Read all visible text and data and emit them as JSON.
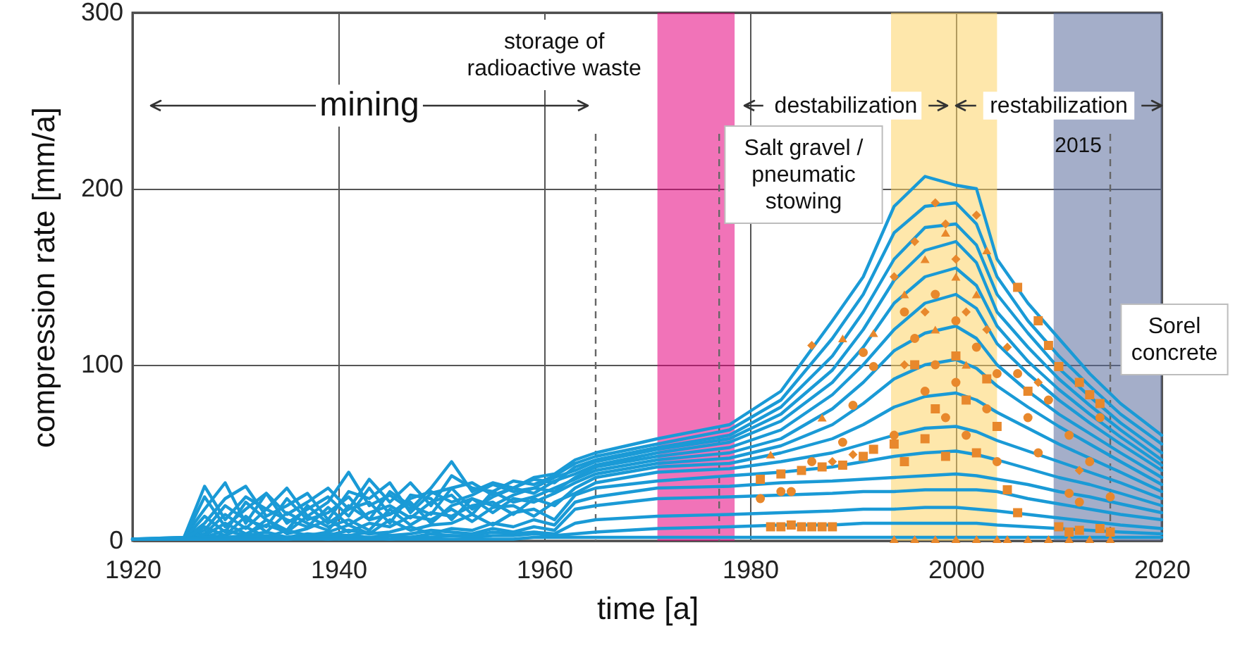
{
  "chart_data": {
    "type": "line",
    "xlabel": "time [a]",
    "ylabel": "compression rate [mm/a]",
    "xlim": [
      1920,
      2020
    ],
    "ylim": [
      0,
      300
    ],
    "xticks": [
      1920,
      1940,
      1960,
      1980,
      2000,
      2020
    ],
    "yticks": [
      0,
      100,
      200,
      300
    ],
    "grid": true,
    "line_style": "solid",
    "x": [
      1920,
      1925,
      1927,
      1929,
      1931,
      1933,
      1935,
      1937,
      1939,
      1941,
      1943,
      1945,
      1947,
      1949,
      1951,
      1953,
      1955,
      1957,
      1959,
      1961,
      1963,
      1965,
      1971,
      1978,
      1983,
      1988,
      1991,
      1994,
      1997,
      2000,
      2002,
      2004,
      2007,
      2010,
      2013,
      2016,
      2020
    ],
    "series": [
      {
        "color": "#1a9ad6",
        "values": [
          1,
          2,
          31,
          12,
          25,
          18,
          30,
          14,
          22,
          39,
          20,
          26,
          18,
          30,
          45,
          28,
          33,
          30,
          36,
          38,
          46,
          50,
          58,
          66,
          85,
          125,
          150,
          190,
          207,
          202,
          200,
          160,
          135,
          115,
          95,
          78,
          60
        ]
      },
      {
        "color": "#1a9ad6",
        "values": [
          1,
          2,
          18,
          33,
          10,
          27,
          15,
          22,
          30,
          18,
          35,
          22,
          33,
          20,
          37,
          30,
          28,
          34,
          32,
          37,
          44,
          48,
          55,
          63,
          80,
          115,
          140,
          175,
          190,
          192,
          180,
          150,
          125,
          105,
          88,
          72,
          55
        ]
      },
      {
        "color": "#1a9ad6",
        "values": [
          1,
          1,
          10,
          24,
          31,
          14,
          20,
          27,
          12,
          28,
          24,
          33,
          16,
          27,
          30,
          33,
          26,
          30,
          35,
          33,
          42,
          46,
          53,
          60,
          76,
          105,
          130,
          160,
          178,
          180,
          168,
          140,
          118,
          98,
          82,
          67,
          50
        ]
      },
      {
        "color": "#1a9ad6",
        "values": [
          1,
          1,
          25,
          8,
          18,
          27,
          10,
          18,
          25,
          14,
          30,
          15,
          24,
          28,
          22,
          26,
          32,
          28,
          30,
          36,
          40,
          45,
          52,
          58,
          72,
          97,
          120,
          148,
          165,
          170,
          158,
          130,
          110,
          92,
          77,
          63,
          46
        ]
      },
      {
        "color": "#1a9ad6",
        "values": [
          1,
          1,
          6,
          20,
          12,
          8,
          24,
          12,
          16,
          25,
          12,
          28,
          20,
          15,
          30,
          18,
          25,
          30,
          27,
          34,
          38,
          43,
          50,
          56,
          68,
          90,
          110,
          135,
          150,
          155,
          145,
          122,
          102,
          86,
          72,
          59,
          43
        ]
      },
      {
        "color": "#1a9ad6",
        "values": [
          1,
          1,
          14,
          5,
          22,
          12,
          6,
          20,
          10,
          18,
          22,
          10,
          26,
          24,
          12,
          24,
          20,
          26,
          30,
          28,
          36,
          42,
          48,
          53,
          63,
          83,
          100,
          120,
          135,
          140,
          132,
          112,
          95,
          80,
          67,
          55,
          40
        ]
      },
      {
        "color": "#1a9ad6",
        "values": [
          1,
          1,
          4,
          15,
          7,
          18,
          12,
          8,
          19,
          9,
          16,
          20,
          13,
          22,
          26,
          15,
          28,
          22,
          25,
          30,
          35,
          40,
          46,
          50,
          58,
          75,
          90,
          108,
          118,
          122,
          115,
          100,
          85,
          72,
          61,
          50,
          36
        ]
      },
      {
        "color": "#1a9ad6",
        "values": [
          1,
          1,
          8,
          3,
          14,
          5,
          16,
          10,
          6,
          20,
          12,
          15,
          22,
          10,
          20,
          24,
          16,
          24,
          22,
          27,
          33,
          38,
          44,
          47,
          54,
          66,
          78,
          92,
          100,
          103,
          98,
          88,
          76,
          65,
          55,
          45,
          32
        ]
      },
      {
        "color": "#1a9ad6",
        "values": [
          1,
          1,
          3,
          10,
          4,
          9,
          5,
          14,
          8,
          12,
          6,
          18,
          9,
          16,
          14,
          20,
          22,
          15,
          24,
          20,
          30,
          36,
          42,
          44,
          50,
          58,
          66,
          76,
          82,
          84,
          80,
          73,
          64,
          55,
          47,
          39,
          28
        ]
      },
      {
        "color": "#1a9ad6",
        "values": [
          1,
          1,
          2,
          6,
          3,
          12,
          4,
          7,
          12,
          5,
          10,
          8,
          14,
          12,
          18,
          11,
          19,
          20,
          14,
          22,
          27,
          33,
          39,
          41,
          45,
          50,
          55,
          60,
          64,
          65,
          62,
          57,
          51,
          45,
          39,
          33,
          24
        ]
      },
      {
        "color": "#1a9ad6",
        "values": [
          1,
          1,
          2,
          3,
          8,
          2,
          6,
          3,
          5,
          9,
          4,
          12,
          6,
          9,
          10,
          15,
          9,
          16,
          18,
          12,
          26,
          30,
          34,
          37,
          39,
          42,
          45,
          48,
          50,
          51,
          49,
          46,
          41,
          36,
          32,
          27,
          20
        ]
      },
      {
        "color": "#1a9ad6",
        "values": [
          1,
          1,
          2,
          2,
          3,
          5,
          2,
          4,
          3,
          6,
          4,
          5,
          8,
          4,
          7,
          6,
          10,
          8,
          12,
          9,
          22,
          25,
          30,
          31,
          33,
          34,
          35,
          36,
          37,
          38,
          37,
          35,
          32,
          28,
          25,
          21,
          16
        ]
      },
      {
        "color": "#1a9ad6",
        "values": [
          1,
          1,
          1,
          2,
          2,
          3,
          2,
          3,
          4,
          3,
          5,
          3,
          4,
          6,
          5,
          4,
          7,
          5,
          8,
          6,
          18,
          20,
          24,
          25,
          26,
          27,
          28,
          28,
          29,
          29,
          29,
          28,
          24,
          21,
          18,
          15,
          12
        ]
      },
      {
        "color": "#1a9ad6",
        "values": [
          1,
          1,
          1,
          1,
          2,
          2,
          1,
          2,
          2,
          3,
          2,
          3,
          2,
          4,
          3,
          3,
          5,
          4,
          5,
          4,
          10,
          12,
          14,
          15,
          16,
          17,
          18,
          18,
          19,
          19,
          18,
          17,
          15,
          13,
          11,
          9,
          7
        ]
      },
      {
        "color": "#1a9ad6",
        "values": [
          1,
          1,
          1,
          1,
          1,
          1,
          1,
          2,
          1,
          2,
          2,
          1,
          2,
          2,
          3,
          2,
          3,
          3,
          4,
          3,
          4,
          5,
          7,
          8,
          9,
          9,
          10,
          10,
          10,
          10,
          10,
          9,
          8,
          7,
          6,
          5,
          4
        ]
      },
      {
        "color": "#1a9ad6",
        "values": [
          1,
          1,
          1,
          1,
          1,
          1,
          1,
          1,
          1,
          1,
          1,
          1,
          1,
          1,
          1,
          1,
          1,
          1,
          2,
          2,
          2,
          2,
          2,
          2,
          2,
          2,
          2,
          2,
          2,
          2,
          2,
          2,
          2,
          2,
          2,
          2,
          2
        ]
      },
      {
        "type": "scatter",
        "marker": "circle",
        "color": "#e8882c",
        "x": [
          1981,
          1983,
          1984,
          1986,
          1989,
          1990,
          1991,
          1992,
          1994,
          1995,
          1996,
          1997,
          1998,
          1998,
          1999,
          2000,
          2000,
          2001,
          2002,
          2003,
          2004,
          2004,
          2006,
          2007,
          2008,
          2009,
          2011,
          2011,
          2012,
          2013,
          2014,
          2015
        ],
        "values": [
          24,
          28,
          28,
          45,
          56,
          77,
          107,
          99,
          60,
          130,
          115,
          85,
          140,
          100,
          70,
          125,
          90,
          60,
          110,
          75,
          45,
          95,
          95,
          70,
          50,
          80,
          60,
          27,
          22,
          45,
          70,
          25
        ]
      },
      {
        "type": "scatter",
        "marker": "square",
        "color": "#e8882c",
        "x": [
          1982,
          1983,
          1984,
          1985,
          1986,
          1987,
          1988,
          1981,
          1983,
          1985,
          1987,
          1989,
          1991,
          1992,
          1994,
          1995,
          1996,
          1997,
          1998,
          1999,
          2000,
          2001,
          2002,
          2003,
          2004,
          2005,
          2006,
          2006,
          2007,
          2008,
          2009,
          2010,
          2010,
          2011,
          2012,
          2012,
          2013,
          2014,
          2014,
          2015
        ],
        "values": [
          8,
          8,
          9,
          8,
          8,
          8,
          8,
          35,
          38,
          40,
          42,
          43,
          48,
          52,
          55,
          45,
          100,
          58,
          75,
          48,
          105,
          80,
          50,
          92,
          65,
          29,
          144,
          16,
          85,
          125,
          111,
          99,
          8,
          5,
          90,
          6,
          83,
          7,
          78,
          5
        ]
      },
      {
        "type": "scatter",
        "marker": "triangle",
        "color": "#e8882c",
        "x": [
          1982,
          1987,
          1989,
          1992,
          1994,
          1995,
          1996,
          1997,
          1998,
          1998,
          1999,
          2000,
          2000,
          2001,
          2002,
          2002,
          2003,
          2004,
          2005,
          2007,
          2009,
          2011,
          2013,
          2015
        ],
        "values": [
          49,
          70,
          115,
          118,
          1,
          140,
          1,
          160,
          1,
          120,
          175,
          1,
          150,
          100,
          1,
          140,
          165,
          1,
          1,
          1,
          1,
          1,
          1,
          1
        ]
      },
      {
        "type": "scatter",
        "marker": "diamond",
        "color": "#e8882c",
        "x": [
          1986,
          1988,
          1990,
          1994,
          1995,
          1996,
          1997,
          1998,
          1999,
          2000,
          2001,
          2002,
          2003,
          2005,
          2008,
          2012
        ],
        "values": [
          111,
          45,
          49,
          150,
          100,
          170,
          130,
          192,
          180,
          160,
          130,
          185,
          120,
          110,
          90,
          40
        ]
      }
    ],
    "ref_lines": [
      {
        "axis": "x",
        "value": 1965,
        "line_style": "dashed"
      },
      {
        "axis": "x",
        "value": 1977,
        "line_style": "dashed"
      },
      {
        "axis": "x",
        "value": 2015,
        "label": "2015",
        "line_style": "dashed"
      }
    ],
    "bands": [
      {
        "axis": "x",
        "from": 1971,
        "to": 1978.5,
        "label": "storage of radioactive waste",
        "color": "#e6007e"
      },
      {
        "axis": "x",
        "from": 1993.7,
        "to": 2004,
        "label": "Salt gravel / pneumatic stowing",
        "color": "#fdd466"
      },
      {
        "axis": "x",
        "from": 2009.5,
        "to": 2020,
        "label": "Sorel concrete",
        "color": "#5a6c9c"
      }
    ],
    "annotations": [
      "mining",
      "destabilization",
      "restabilization"
    ]
  }
}
